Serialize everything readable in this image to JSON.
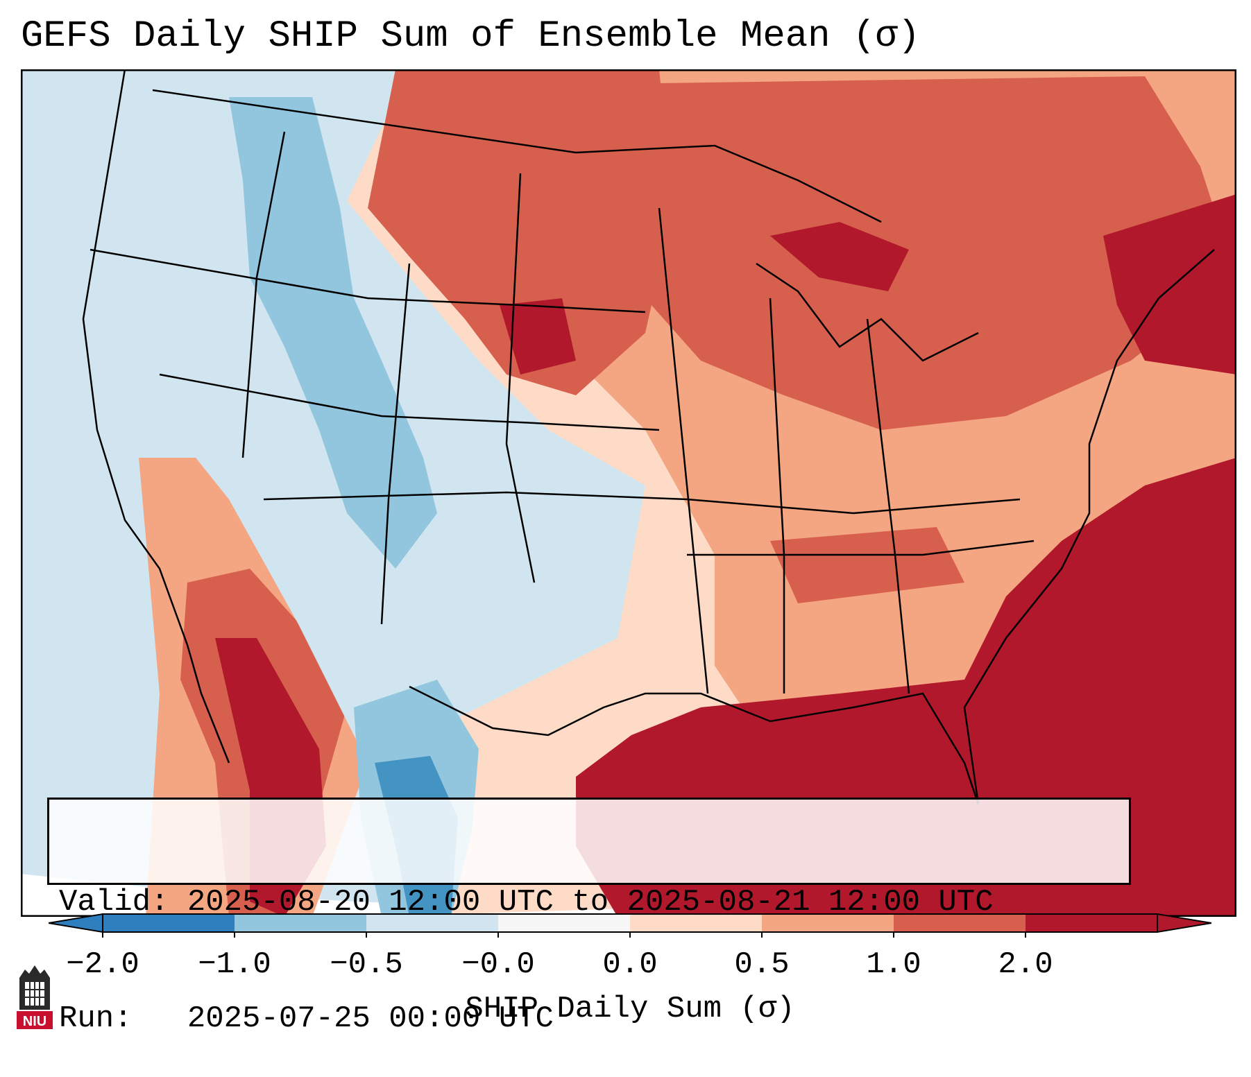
{
  "title": "GEFS Daily SHIP Sum of Ensemble Mean (σ)",
  "info": {
    "valid_line": "Valid: 2025-08-20 12:00 UTC to 2025-08-21 12:00 UTC",
    "run_line": "Run:   2025-07-25 00:00 UTC"
  },
  "colorbar": {
    "label": "SHIP Daily Sum (σ)",
    "ticks": [
      "−2.0",
      "−1.0",
      "−0.5",
      "−0.0",
      "0.0",
      "0.5",
      "1.0",
      "2.0"
    ],
    "colors": [
      "#2f7fbf",
      "#92c5de",
      "#d1e5f0",
      "#f7f7f7",
      "#fddbc7",
      "#f4a582",
      "#d6604d",
      "#b2182b"
    ],
    "extend": "both"
  },
  "map": {
    "region": "Contiguous United States",
    "field": "SHIP daily sum anomaly",
    "colors": {
      "strong_positive": "#b2182b",
      "positive": "#d6604d",
      "weak_positive": "#f4a582",
      "slight_positive": "#fddbc7",
      "neutral": "#f7f7f7",
      "slight_negative": "#d1e5f0",
      "weak_negative": "#92c5de",
      "negative": "#4393c3",
      "outside": "#ffffff"
    }
  },
  "logo": {
    "text": "NIU",
    "color": "#c8102e"
  }
}
